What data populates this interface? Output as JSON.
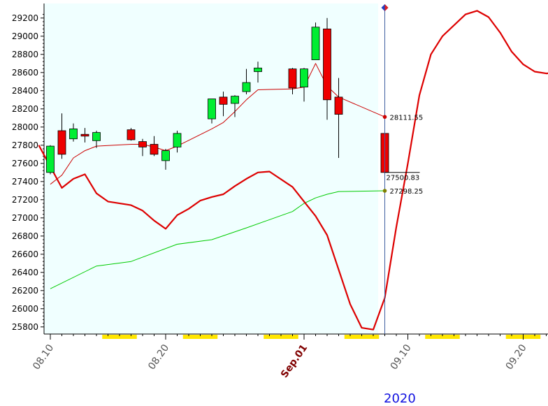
{
  "chart_data": {
    "type": "candlestick",
    "year_label": "2020",
    "ylim": [
      25760,
      29260
    ],
    "y_ticks": [
      25800,
      26000,
      26200,
      26400,
      26600,
      26800,
      27000,
      27200,
      27400,
      27600,
      27800,
      28000,
      28200,
      28400,
      28600,
      28800,
      29000,
      29200
    ],
    "x_ticks": [
      {
        "label": "08.10",
        "date": "2020-08-10",
        "major": false
      },
      {
        "label": "08.20",
        "date": "2020-08-20",
        "major": false
      },
      {
        "label": "Sep.01",
        "date": "2020-09-01",
        "major": true
      },
      {
        "label": "09.10",
        "date": "2020-09-10",
        "major": false
      },
      {
        "label": "09.20",
        "date": "2020-09-20",
        "major": false
      }
    ],
    "candles": [
      {
        "date": "2020-08-10",
        "open": 27500,
        "high": 27800,
        "low": 27480,
        "close": 27790
      },
      {
        "date": "2020-08-11",
        "open": 27960,
        "high": 28150,
        "low": 27650,
        "close": 27700
      },
      {
        "date": "2020-08-12",
        "open": 27870,
        "high": 28040,
        "low": 27840,
        "close": 27980
      },
      {
        "date": "2020-08-13",
        "open": 27920,
        "high": 27990,
        "low": 27830,
        "close": 27900
      },
      {
        "date": "2020-08-14",
        "open": 27850,
        "high": 27960,
        "low": 27770,
        "close": 27940
      },
      {
        "date": "2020-08-17",
        "open": 27970,
        "high": 27990,
        "low": 27850,
        "close": 27860
      },
      {
        "date": "2020-08-18",
        "open": 27840,
        "high": 27870,
        "low": 27680,
        "close": 27780
      },
      {
        "date": "2020-08-19",
        "open": 27810,
        "high": 27900,
        "low": 27680,
        "close": 27700
      },
      {
        "date": "2020-08-20",
        "open": 27630,
        "high": 27760,
        "low": 27530,
        "close": 27740
      },
      {
        "date": "2020-08-21",
        "open": 27780,
        "high": 27960,
        "low": 27720,
        "close": 27930
      },
      {
        "date": "2020-08-24",
        "open": 28090,
        "high": 28310,
        "low": 28040,
        "close": 28310
      },
      {
        "date": "2020-08-25",
        "open": 28330,
        "high": 28390,
        "low": 28120,
        "close": 28250
      },
      {
        "date": "2020-08-26",
        "open": 28260,
        "high": 28350,
        "low": 28110,
        "close": 28340
      },
      {
        "date": "2020-08-27",
        "open": 28390,
        "high": 28640,
        "low": 28360,
        "close": 28490
      },
      {
        "date": "2020-08-28",
        "open": 28610,
        "high": 28720,
        "low": 28490,
        "close": 28650
      },
      {
        "date": "2020-08-31",
        "open": 28640,
        "high": 28650,
        "low": 28360,
        "close": 28430
      },
      {
        "date": "2020-09-01",
        "open": 28440,
        "high": 28650,
        "low": 28280,
        "close": 28640
      },
      {
        "date": "2020-09-02",
        "open": 28740,
        "high": 29150,
        "low": 28740,
        "close": 29100
      },
      {
        "date": "2020-09-03",
        "open": 29080,
        "high": 29200,
        "low": 28080,
        "close": 28300
      },
      {
        "date": "2020-09-04",
        "open": 28330,
        "high": 28540,
        "low": 27660,
        "close": 28140
      },
      {
        "date": "2020-09-08",
        "open": 27930,
        "high": 27930,
        "low": 27500,
        "close": 27500
      }
    ],
    "lines": [
      {
        "name": "",
        "color": "#cc0000",
        "width": 1,
        "x": [
          "2020-08-10",
          "2020-08-11",
          "2020-08-12",
          "2020-08-13",
          "2020-08-14",
          "2020-08-17",
          "2020-08-18",
          "2020-08-19",
          "2020-08-20",
          "2020-08-21",
          "2020-08-24",
          "2020-08-25",
          "2020-08-26",
          "2020-08-27",
          "2020-08-28",
          "2020-08-31",
          "2020-09-01",
          "2020-09-02",
          "2020-09-03",
          "2020-09-04",
          "2020-09-08"
        ],
        "y": [
          27370,
          27470,
          27660,
          27740,
          27790,
          27810,
          27810,
          27780,
          27740,
          27790,
          27980,
          28050,
          28170,
          28300,
          28410,
          28420,
          28440,
          28700,
          28450,
          28330,
          28111.55
        ]
      },
      {
        "name": "",
        "color": "#00cc00",
        "width": 1,
        "x": [
          "2020-08-10",
          "2020-08-14",
          "2020-08-17",
          "2020-08-21",
          "2020-08-24",
          "2020-08-27",
          "2020-08-31",
          "2020-09-01",
          "2020-09-02",
          "2020-09-03",
          "2020-09-04",
          "2020-09-08"
        ],
        "y": [
          26220,
          26470,
          26520,
          26710,
          26760,
          26890,
          27070,
          27160,
          27220,
          27260,
          27290,
          27298.25
        ]
      },
      {
        "name": "",
        "color": "#dd0000",
        "width": 2.2,
        "x": [
          "2020-08-09",
          "2020-08-11",
          "2020-08-12",
          "2020-08-13",
          "2020-08-14",
          "2020-08-15",
          "2020-08-17",
          "2020-08-18",
          "2020-08-19",
          "2020-08-20",
          "2020-08-21",
          "2020-08-22",
          "2020-08-23",
          "2020-08-24",
          "2020-08-25",
          "2020-08-26",
          "2020-08-27",
          "2020-08-28",
          "2020-08-29",
          "2020-08-31",
          "2020-09-01",
          "2020-09-02",
          "2020-09-03",
          "2020-09-04",
          "2020-09-05",
          "2020-09-06",
          "2020-09-07",
          "2020-09-08",
          "2020-09-09",
          "2020-09-10",
          "2020-09-11",
          "2020-09-12",
          "2020-09-13",
          "2020-09-15",
          "2020-09-16",
          "2020-09-17",
          "2020-09-18",
          "2020-09-19",
          "2020-09-20",
          "2020-09-21",
          "2020-09-22",
          "2020-09-23"
        ],
        "y": [
          27800,
          27330,
          27430,
          27480,
          27270,
          27180,
          27140,
          27080,
          26970,
          26880,
          27030,
          27100,
          27190,
          27230,
          27260,
          27350,
          27430,
          27500,
          27510,
          27340,
          27180,
          27020,
          26810,
          26430,
          26050,
          25790,
          25770,
          26120,
          26900,
          27600,
          28350,
          28800,
          29000,
          29240,
          29280,
          29210,
          29040,
          28830,
          28690,
          28610,
          28590,
          28600
        ]
      }
    ],
    "vertical_marker": {
      "date": "2020-09-08",
      "color": "#4060a0"
    },
    "value_labels": [
      {
        "text": "28111.55",
        "value": 28111.55,
        "color": "#cc0000"
      },
      {
        "text": "27500.83",
        "value": 27500.83,
        "color": "#000000"
      },
      {
        "text": "27298.25",
        "value": 27298.25,
        "color": "#808000"
      }
    ],
    "highlight_ranges": [
      [
        "2020-08-15",
        "2020-08-17"
      ],
      [
        "2020-08-22",
        "2020-08-24"
      ],
      [
        "2020-08-29",
        "2020-08-31"
      ],
      [
        "2020-09-05",
        "2020-09-07"
      ],
      [
        "2020-09-12",
        "2020-09-14"
      ],
      [
        "2020-09-19",
        "2020-09-21"
      ]
    ],
    "colors": {
      "up_fill": "#00ee33",
      "down_fill": "#ee0000",
      "plot_background": "#f0ffff",
      "axis": "#000000",
      "highlight": "#ffe600"
    },
    "grid": false
  }
}
